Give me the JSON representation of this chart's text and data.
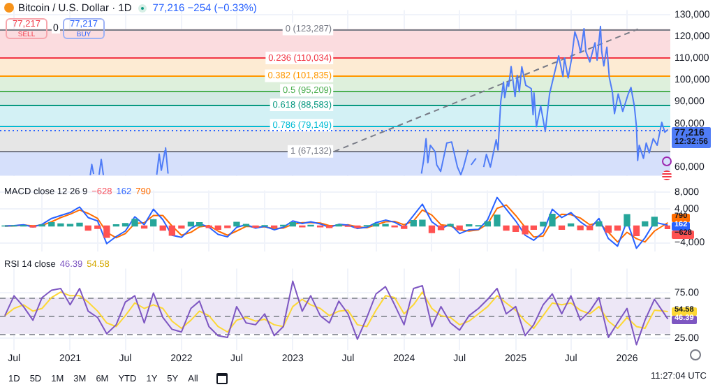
{
  "chart_data": [
    {
      "type": "line",
      "title": "Bitcoin / U.S. Dollar · 1D",
      "xlim": [
        "2020-05-16",
        "2026-05-23"
      ],
      "ylim": [
        56000,
        132000
      ],
      "xticks": [
        "2020-07",
        "2021",
        "2021-07",
        "2022",
        "2022-07",
        "2023",
        "2023-07",
        "2024",
        "2024-07",
        "2025",
        "2025-07",
        "2026"
      ],
      "yticks": [
        {
          "value": 60000,
          "label": "60,000"
        },
        {
          "value": 80000,
          "label": "80,000"
        },
        {
          "value": 90000,
          "label": "90,000"
        },
        {
          "value": 100000,
          "label": "100,000"
        },
        {
          "value": 110000,
          "label": "110,000"
        },
        {
          "value": 120000,
          "label": "120,000"
        },
        {
          "value": 130000,
          "label": "130,000"
        }
      ],
      "tick_labels": "y",
      "grid": true,
      "legend": false,
      "marker": "none",
      "bands": [
        {
          "axis": "y",
          "from": 110034,
          "to": 123287,
          "color": "#fbdcdf"
        },
        {
          "axis": "y",
          "from": 101835,
          "to": 110034,
          "color": "#fdebd3"
        },
        {
          "axis": "y",
          "from": 95209,
          "to": 101835,
          "color": "#def0dc"
        },
        {
          "axis": "y",
          "from": 88583,
          "to": 95209,
          "color": "#d2e9e4"
        },
        {
          "axis": "y",
          "from": 79149,
          "to": 88583,
          "color": "#d3f1f5"
        },
        {
          "axis": "y",
          "from": 67132,
          "to": 79149,
          "color": "#e6e6e6"
        },
        {
          "axis": "y",
          "from": 56000,
          "to": 67132,
          "color": "#d6e0fb"
        }
      ],
      "ref_lines": [
        {
          "axis": "y",
          "value": 123287,
          "label": "0 (123,287)",
          "color": "#787b86"
        },
        {
          "axis": "y",
          "value": 110034,
          "label": "0.236 (110,034)",
          "color": "#f23645"
        },
        {
          "axis": "y",
          "value": 101835,
          "label": "0.382 (101,835)",
          "color": "#ff9800"
        },
        {
          "axis": "y",
          "value": 95209,
          "label": "0.5 (95,209)",
          "color": "#4caf50"
        },
        {
          "axis": "y",
          "value": 88583,
          "label": "0.618 (88,583)",
          "color": "#089981"
        },
        {
          "axis": "y",
          "value": 79149,
          "label": "0.786 (79,149)",
          "color": "#00bcd4"
        },
        {
          "axis": "y",
          "value": 67132,
          "label": "1 (67,132)",
          "color": "#787b86"
        },
        {
          "axis": "y",
          "value": 77216,
          "color": "#2962ff",
          "line_style": "dotted"
        }
      ],
      "series": [
        {
          "color": "#4f7cf7",
          "x": [
            "2021-03-08",
            "2021-03-13",
            "2021-03-19",
            "2021-03-24",
            "2021-04-06",
            "2021-04-13",
            "2021-04-20",
            "2021-04-25",
            "2021-10-12",
            "2021-10-20",
            "2021-10-27",
            "2021-11-08",
            "2021-11-10",
            "2021-11-18",
            "2021-11-25",
            "2024-02-27",
            "2024-03-05",
            "2024-03-13",
            "2024-03-19",
            "2024-03-27",
            "2024-04-12",
            "2024-04-17",
            "2024-04-30",
            "2024-05-20",
            "2024-06-05",
            "2024-06-24",
            "2024-07-05",
            "2024-07-14",
            "2024-07-29",
            "2024-08-05",
            "2024-08-08",
            "2024-08-24",
            "2024-09-06",
            "2024-09-18",
            "2024-09-27",
            "2024-10-10",
            "2024-10-29",
            "2024-11-04",
            "2024-11-13",
            "2024-11-22",
            "2024-11-26",
            "2024-12-05",
            "2024-12-09",
            "2024-12-17",
            "2024-12-30",
            "2025-01-06",
            "2025-01-13",
            "2025-01-21",
            "2025-02-03",
            "2025-02-21",
            "2025-02-27",
            "2025-03-02",
            "2025-03-10",
            "2025-03-24",
            "2025-04-08",
            "2025-04-22",
            "2025-05-08",
            "2025-05-22",
            "2025-06-05",
            "2025-06-10",
            "2025-06-22",
            "2025-07-03",
            "2025-07-14",
            "2025-07-24",
            "2025-08-02",
            "2025-08-13",
            "2025-08-19",
            "2025-09-01",
            "2025-09-18",
            "2025-09-25",
            "2025-10-06",
            "2025-10-10",
            "2025-10-17",
            "2025-10-27",
            "2025-11-04",
            "2025-11-14",
            "2025-11-21",
            "2025-12-03",
            "2025-12-18",
            "2026-01-05",
            "2026-01-14",
            "2026-01-25",
            "2026-02-01",
            "2026-02-05",
            "2026-02-10",
            "2026-02-24",
            "2026-03-05",
            "2026-03-15",
            "2026-03-28",
            "2026-04-10",
            "2026-04-25",
            "2026-05-05",
            "2026-05-15"
          ],
          "values": [
            56200,
            61200,
            56800,
            null,
            56500,
            63500,
            56300,
            null,
            56500,
            66000,
            58500,
            67500,
            68800,
            57000,
            null,
            57000,
            63000,
            73000,
            62000,
            70000,
            67000,
            61000,
            58000,
            71000,
            71500,
            60000,
            56500,
            60000,
            68000,
            null,
            61000,
            64000,
            null,
            60000,
            65800,
            60000,
            72500,
            67800,
            90000,
            99000,
            91900,
            98800,
            97000,
            106100,
            92300,
            102000,
            94500,
            106000,
            97500,
            96000,
            84000,
            94000,
            78500,
            88000,
            76300,
            93500,
            103000,
            111000,
            101500,
            110000,
            100900,
            109500,
            122000,
            118000,
            112500,
            123500,
            113000,
            108200,
            117000,
            109000,
            124500,
            113000,
            106400,
            115000,
            101000,
            94500,
            84500,
            93500,
            85500,
            93500,
            96500,
            88000,
            78500,
            63000,
            70000,
            64000,
            71000,
            66500,
            73000,
            70000,
            80500,
            76000,
            77216
          ]
        },
        {
          "color": "#787b86",
          "line_style": "dashed",
          "x": [
            "2023-05-17",
            "2026-02-06"
          ],
          "values": [
            67132,
            123287
          ]
        }
      ],
      "annotations": [
        "77,216 −254 (−0.33%)",
        "77,217",
        "SELL",
        "0",
        "77,217",
        "BUY",
        {
          "text": "77,216",
          "x": "2026-05-15",
          "y": 77216
        },
        "12:32:56"
      ]
    },
    {
      "type": "line",
      "title": "MACD close 12 26 9",
      "xlim": [
        "2020-05-16",
        "2026-05-23"
      ],
      "ylim": [
        -6000,
        8500
      ],
      "xticks": [
        "2020-07",
        "2021",
        "2021-07",
        "2022",
        "2022-07",
        "2023",
        "2023-07",
        "2024",
        "2024-07",
        "2025",
        "2025-07",
        "2026"
      ],
      "yticks": [
        {
          "value": -4000,
          "label": "−4,000"
        },
        {
          "value": 4000,
          "label": "4,000"
        },
        {
          "value": 8000,
          "label": "8,000"
        }
      ],
      "tick_labels": "y",
      "grid": true,
      "legend": false,
      "marker": "none",
      "x": [
        "2020-06",
        "2020-07",
        "2020-08",
        "2020-09",
        "2020-10",
        "2020-11",
        "2020-12",
        "2021-01",
        "2021-02",
        "2021-03",
        "2021-04",
        "2021-05",
        "2021-06",
        "2021-07",
        "2021-08",
        "2021-09",
        "2021-10",
        "2021-11",
        "2021-12",
        "2022-01",
        "2022-02",
        "2022-03",
        "2022-04",
        "2022-05",
        "2022-06",
        "2022-07",
        "2022-08",
        "2022-09",
        "2022-10",
        "2022-11",
        "2022-12",
        "2023-01",
        "2023-02",
        "2023-03",
        "2023-04",
        "2023-05",
        "2023-06",
        "2023-07",
        "2023-08",
        "2023-09",
        "2023-10",
        "2023-11",
        "2023-12",
        "2024-01",
        "2024-02",
        "2024-03",
        "2024-04",
        "2024-05",
        "2024-06",
        "2024-07",
        "2024-08",
        "2024-09",
        "2024-10",
        "2024-11",
        "2024-12",
        "2025-01",
        "2025-02",
        "2025-03",
        "2025-04",
        "2025-05",
        "2025-06",
        "2025-07",
        "2025-08",
        "2025-09",
        "2025-10",
        "2025-11",
        "2025-12",
        "2026-01",
        "2026-02",
        "2026-03",
        "2026-04",
        "2026-05-15"
      ],
      "series": [
        {
          "type": "bar",
          "colors": [
            "#26a69a",
            "#26a69a",
            "#26a69a",
            "#ff5252",
            "#26a69a",
            "#26a69a",
            "#26a69a",
            "#26a69a",
            "#26a69a",
            "#ff5252",
            "#ff5252",
            "#ff5252",
            "#26a69a",
            "#26a69a",
            "#26a69a",
            "#ff5252",
            "#26a69a",
            "#ff5252",
            "#ff5252",
            "#ff5252",
            "#26a69a",
            "#26a69a",
            "#ff5252",
            "#ff5252",
            "#ff5252",
            "#26a69a",
            "#26a69a",
            "#ff5252",
            "#26a69a",
            "#ff5252",
            "#26a69a",
            "#26a69a",
            "#ff5252",
            "#26a69a",
            "#ff5252",
            "#ff5252",
            "#26a69a",
            "#ff5252",
            "#ff5252",
            "#26a69a",
            "#26a69a",
            "#26a69a",
            "#ff5252",
            "#ff5252",
            "#26a69a",
            "#26a69a",
            "#ff5252",
            "#ff5252",
            "#26a69a",
            "#ff5252",
            "#26a69a",
            "#26a69a",
            "#26a69a",
            "#26a69a",
            "#ff5252",
            "#ff5252",
            "#ff5252",
            "#ff5252",
            "#26a69a",
            "#26a69a",
            "#ff5252",
            "#26a69a",
            "#ff5252",
            "#ff5252",
            "#26a69a",
            "#ff5252",
            "#ff5252",
            "#26a69a",
            "#ff5252",
            "#26a69a",
            "#26a69a",
            "#ff5252"
          ],
          "values": [
            0,
            50,
            100,
            -250,
            250,
            800,
            500,
            400,
            700,
            -1000,
            -600,
            -2700,
            300,
            600,
            1600,
            -500,
            1500,
            -1000,
            -2200,
            -500,
            900,
            800,
            -400,
            -800,
            -400,
            900,
            400,
            -300,
            100,
            -300,
            200,
            800,
            -200,
            200,
            -200,
            -400,
            300,
            -100,
            -400,
            100,
            500,
            400,
            -200,
            -600,
            1300,
            1400,
            -1600,
            -900,
            400,
            -900,
            300,
            100,
            1000,
            2600,
            -1000,
            -1300,
            -1900,
            -800,
            900,
            2800,
            -800,
            500,
            -900,
            -900,
            1000,
            -1500,
            -1000,
            2700,
            -2300,
            1000,
            2100,
            -628
          ]
        },
        {
          "color": "#2962ff",
          "values": [
            0,
            100,
            300,
            -200,
            400,
            1800,
            2500,
            3200,
            4500,
            2000,
            1200,
            -4200,
            -2500,
            -1200,
            2200,
            300,
            4000,
            1500,
            -2200,
            -2700,
            -600,
            600,
            -300,
            -2000,
            -2600,
            -300,
            300,
            -500,
            -100,
            -900,
            -300,
            1200,
            600,
            1000,
            500,
            -300,
            400,
            200,
            -600,
            -300,
            800,
            1400,
            900,
            -300,
            2500,
            5200,
            1000,
            -600,
            400,
            -1800,
            -900,
            -800,
            1500,
            6800,
            4000,
            1200,
            -2200,
            -3400,
            -1500,
            4000,
            2000,
            3200,
            1000,
            -600,
            1800,
            -3000,
            -4800,
            1200,
            -5300,
            -2800,
            900,
            162
          ]
        },
        {
          "color": "#ff6d00",
          "values": [
            0,
            50,
            200,
            50,
            150,
            1000,
            2000,
            2800,
            3800,
            3000,
            1800,
            -1500,
            -2800,
            -1800,
            600,
            800,
            2500,
            2500,
            0,
            -2200,
            -1500,
            -200,
            100,
            -1200,
            -2200,
            -1200,
            -100,
            -200,
            -200,
            -600,
            -500,
            400,
            800,
            800,
            700,
            100,
            100,
            300,
            -200,
            -400,
            300,
            1000,
            1100,
            300,
            1200,
            3800,
            2600,
            300,
            0,
            -900,
            -1200,
            -900,
            500,
            4200,
            5000,
            2500,
            -300,
            -2600,
            -2400,
            1200,
            2800,
            2700,
            1900,
            300,
            800,
            -1500,
            -3800,
            -1500,
            -3000,
            -3800,
            -1200,
            790
          ]
        }
      ],
      "annotations": [
        "−628",
        "162",
        "790",
        {
          "text": "790",
          "x": "2026-05-15",
          "y": 790
        },
        {
          "text": "162",
          "x": "2026-05-15",
          "y": 162
        },
        {
          "text": "−628",
          "x": "2026-05-15",
          "y": -628
        }
      ]
    },
    {
      "type": "line",
      "title": "RSI 14 close",
      "xlim": [
        "2020-05-16",
        "2026-05-23"
      ],
      "ylim": [
        12,
        102
      ],
      "xticks": [
        {
          "value": "2020-07",
          "label": "Jul"
        },
        {
          "value": "2021",
          "label": "2021"
        },
        {
          "value": "2021-07",
          "label": "Jul"
        },
        {
          "value": "2022",
          "label": "2022"
        },
        {
          "value": "2022-07",
          "label": "Jul"
        },
        {
          "value": "2023",
          "label": "2023"
        },
        {
          "value": "2023-07",
          "label": "Jul"
        },
        {
          "value": "2024",
          "label": "2024"
        },
        {
          "value": "2024-07",
          "label": "Jul"
        },
        {
          "value": "2025",
          "label": "2025"
        },
        {
          "value": "2025-07",
          "label": "Jul"
        },
        {
          "value": "2026",
          "label": "2026"
        }
      ],
      "yticks": [
        {
          "value": 25,
          "label": "25.00"
        },
        {
          "value": 75,
          "label": "75.00"
        }
      ],
      "grid": true,
      "legend": false,
      "marker": "none",
      "bands": [
        {
          "axis": "y",
          "from": 30,
          "to": 70,
          "color": "#ede7f6"
        }
      ],
      "ref_lines": [
        {
          "axis": "y",
          "value": 70,
          "color": "#9598a1",
          "line_style": "dashed"
        },
        {
          "axis": "y",
          "value": 50,
          "color": "#9598a1",
          "line_style": "dashed"
        },
        {
          "axis": "y",
          "value": 30,
          "color": "#9598a1",
          "line_style": "dashed"
        }
      ],
      "x": [
        "2020-06",
        "2020-07",
        "2020-08",
        "2020-09",
        "2020-10",
        "2020-11",
        "2020-12",
        "2021-01",
        "2021-02",
        "2021-03",
        "2021-04",
        "2021-05",
        "2021-06",
        "2021-07",
        "2021-08",
        "2021-09",
        "2021-10",
        "2021-11",
        "2021-12",
        "2022-01",
        "2022-02",
        "2022-03",
        "2022-04",
        "2022-05",
        "2022-06",
        "2022-07",
        "2022-08",
        "2022-09",
        "2022-10",
        "2022-11",
        "2022-12",
        "2023-01",
        "2023-02",
        "2023-03",
        "2023-04",
        "2023-05",
        "2023-06",
        "2023-07",
        "2023-08",
        "2023-09",
        "2023-10",
        "2023-11",
        "2023-12",
        "2024-01",
        "2024-02",
        "2024-03",
        "2024-04",
        "2024-05",
        "2024-06",
        "2024-07",
        "2024-08",
        "2024-09",
        "2024-10",
        "2024-11",
        "2024-12",
        "2025-01",
        "2025-02",
        "2025-03",
        "2025-04",
        "2025-05",
        "2025-06",
        "2025-07",
        "2025-08",
        "2025-09",
        "2025-10",
        "2025-11",
        "2025-12",
        "2026-01",
        "2026-02",
        "2026-03",
        "2026-04",
        "2026-05-15"
      ],
      "series": [
        {
          "color": "#7e57c2",
          "values": [
            50,
            72,
            60,
            45,
            70,
            78,
            80,
            62,
            80,
            55,
            48,
            30,
            40,
            65,
            72,
            42,
            75,
            48,
            35,
            32,
            58,
            66,
            38,
            28,
            26,
            60,
            42,
            40,
            52,
            28,
            38,
            88,
            55,
            72,
            50,
            42,
            66,
            52,
            24,
            48,
            74,
            82,
            62,
            40,
            80,
            83,
            38,
            60,
            42,
            34,
            50,
            58,
            68,
            80,
            52,
            60,
            28,
            40,
            62,
            74,
            52,
            72,
            45,
            55,
            70,
            26,
            42,
            58,
            18,
            45,
            68,
            46.39
          ]
        },
        {
          "color": "#fdd835",
          "values": [
            50,
            58,
            62,
            55,
            58,
            70,
            76,
            72,
            72,
            65,
            55,
            42,
            38,
            50,
            64,
            58,
            62,
            58,
            44,
            36,
            45,
            55,
            50,
            38,
            32,
            45,
            48,
            44,
            46,
            40,
            38,
            60,
            68,
            62,
            58,
            50,
            55,
            56,
            40,
            38,
            56,
            72,
            70,
            52,
            62,
            76,
            58,
            50,
            48,
            40,
            44,
            52,
            60,
            72,
            64,
            56,
            44,
            36,
            50,
            64,
            62,
            64,
            56,
            52,
            60,
            44,
            36,
            48,
            38,
            36,
            56,
            54.58
          ]
        }
      ],
      "annotations": [
        "46.39",
        "54.58",
        {
          "text": "54.58",
          "x": "2026-05-15",
          "y": 54.58
        },
        {
          "text": "46.39",
          "x": "2026-05-15",
          "y": 46.39
        },
        "1D",
        "5D",
        "1M",
        "3M",
        "6M",
        "YTD",
        "1Y",
        "5Y",
        "All",
        "11:27:04 UTC"
      ]
    }
  ]
}
